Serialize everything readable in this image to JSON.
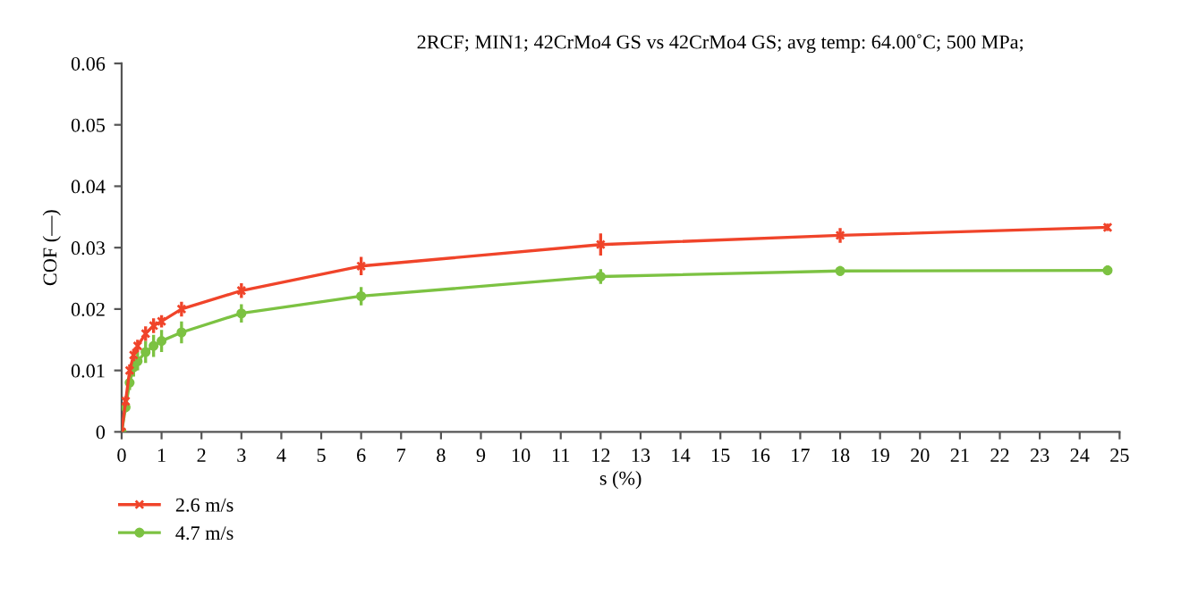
{
  "chart_data": {
    "type": "line",
    "title": "2RCF; MIN1; 42CrMo4 GS vs 42CrMo4 GS; avg temp: 64.00˚C; 500 MPa;",
    "xlabel": "s (%)",
    "ylabel": "COF (—)",
    "xlim": [
      0,
      25
    ],
    "xticks": [
      0,
      1,
      2,
      3,
      4,
      5,
      6,
      7,
      8,
      9,
      10,
      11,
      12,
      13,
      14,
      15,
      16,
      17,
      18,
      19,
      20,
      21,
      22,
      23,
      24,
      25
    ],
    "ylim": [
      0,
      0.06
    ],
    "yticks": [
      0,
      0.01,
      0.02,
      0.03,
      0.04,
      0.05,
      0.06
    ],
    "legend": "bottom left",
    "grid": false,
    "series": [
      {
        "name": "2.6 m/s",
        "color": "#f0442a",
        "marker": "cross",
        "x": [
          0,
          0.1,
          0.2,
          0.3,
          0.4,
          0.6,
          0.8,
          1.0,
          1.5,
          3,
          6,
          12,
          18,
          24.7
        ],
        "values": [
          0,
          0.005,
          0.01,
          0.0125,
          0.014,
          0.016,
          0.0173,
          0.018,
          0.02,
          0.023,
          0.027,
          0.0305,
          0.032,
          0.0333
        ],
        "errors": [
          null,
          0.0008,
          0.001,
          0.001,
          0.001,
          0.0012,
          0.0012,
          0.001,
          0.0012,
          0.0012,
          0.0015,
          0.0018,
          0.0012,
          0.0006
        ]
      },
      {
        "name": "4.7 m/s",
        "color": "#7cc242",
        "marker": "circle",
        "x": [
          0,
          0.1,
          0.2,
          0.3,
          0.4,
          0.6,
          0.8,
          1.0,
          1.5,
          3,
          6,
          12,
          18,
          24.7
        ],
        "values": [
          0,
          0.004,
          0.008,
          0.0105,
          0.0115,
          0.013,
          0.014,
          0.0148,
          0.0162,
          0.0193,
          0.0221,
          0.0253,
          0.0262,
          0.0263
        ],
        "errors": [
          null,
          0.0008,
          0.0012,
          0.0015,
          0.0015,
          0.0018,
          0.0018,
          0.0018,
          0.0018,
          0.0015,
          0.0015,
          0.0012,
          0.0008,
          0.0008
        ]
      }
    ]
  }
}
